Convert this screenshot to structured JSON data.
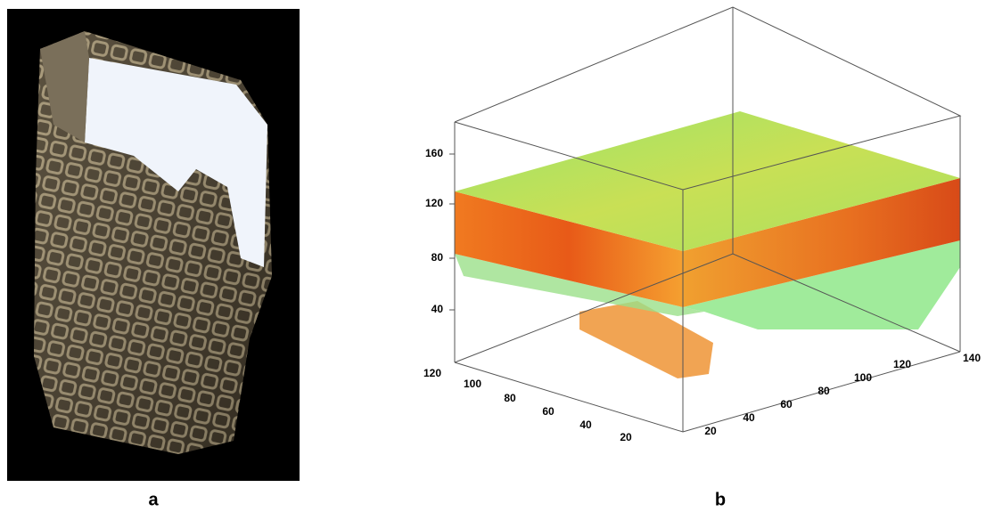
{
  "panels": [
    {
      "label": "a"
    },
    {
      "label": "b",
      "axes": {
        "vertical_ticks": [
          160,
          120,
          80,
          40
        ],
        "left_ticks": [
          120,
          100,
          80,
          60,
          40,
          20
        ],
        "right_ticks": [
          20,
          40,
          60,
          80,
          100,
          120,
          140
        ]
      }
    }
  ]
}
